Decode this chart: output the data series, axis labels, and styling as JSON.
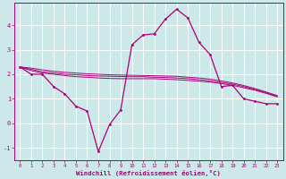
{
  "background_color": "#cce8e8",
  "grid_color": "#ffffff",
  "line_color": "#aa0077",
  "title": "Windchill (Refroidissement éolien,°C)",
  "xlim": [
    -0.5,
    23.5
  ],
  "ylim": [
    -1.5,
    4.9
  ],
  "yticks": [
    -1,
    0,
    1,
    2,
    3,
    4
  ],
  "xticks": [
    0,
    1,
    2,
    3,
    4,
    5,
    6,
    7,
    8,
    9,
    10,
    11,
    12,
    13,
    14,
    15,
    16,
    17,
    18,
    19,
    20,
    21,
    22,
    23
  ],
  "line1_x": [
    0,
    1,
    2,
    3,
    4,
    5,
    6,
    7,
    8,
    9,
    10,
    11,
    12,
    13,
    14,
    15,
    16,
    17,
    18,
    19,
    20,
    21,
    22,
    23
  ],
  "line1_y": [
    2.3,
    2.0,
    2.0,
    1.5,
    1.2,
    0.7,
    0.5,
    -1.15,
    -0.05,
    0.55,
    3.2,
    3.6,
    3.65,
    4.25,
    4.65,
    4.3,
    3.3,
    2.8,
    1.5,
    1.55,
    1.0,
    0.9,
    0.8,
    0.8
  ],
  "line2_x": [
    0,
    1,
    2,
    3,
    4,
    5,
    6,
    7,
    8,
    9,
    10,
    11,
    12,
    13,
    14,
    15,
    16,
    17,
    18,
    19,
    20,
    21,
    22,
    23
  ],
  "line2_y": [
    2.3,
    2.15,
    2.05,
    2.0,
    1.95,
    1.9,
    1.88,
    1.85,
    1.83,
    1.82,
    1.82,
    1.82,
    1.82,
    1.8,
    1.78,
    1.75,
    1.72,
    1.68,
    1.62,
    1.55,
    1.45,
    1.35,
    1.22,
    1.08
  ],
  "line3_x": [
    0,
    1,
    2,
    3,
    4,
    5,
    6,
    7,
    8,
    9,
    10,
    11,
    12,
    13,
    14,
    15,
    16,
    17,
    18,
    19,
    20,
    21,
    22,
    23
  ],
  "line3_y": [
    2.3,
    2.2,
    2.1,
    2.05,
    2.0,
    1.98,
    1.95,
    1.93,
    1.92,
    1.91,
    1.9,
    1.9,
    1.88,
    1.87,
    1.85,
    1.82,
    1.78,
    1.73,
    1.67,
    1.6,
    1.5,
    1.38,
    1.25,
    1.1
  ],
  "line4_x": [
    0,
    1,
    2,
    3,
    4,
    5,
    6,
    7,
    8,
    9,
    10,
    11,
    12,
    13,
    14,
    15,
    16,
    17,
    18,
    19,
    20,
    21,
    22,
    23
  ],
  "line4_y": [
    2.3,
    2.25,
    2.18,
    2.12,
    2.08,
    2.05,
    2.02,
    2.0,
    1.98,
    1.97,
    1.96,
    1.95,
    1.94,
    1.93,
    1.92,
    1.88,
    1.85,
    1.8,
    1.73,
    1.65,
    1.54,
    1.42,
    1.28,
    1.13
  ]
}
